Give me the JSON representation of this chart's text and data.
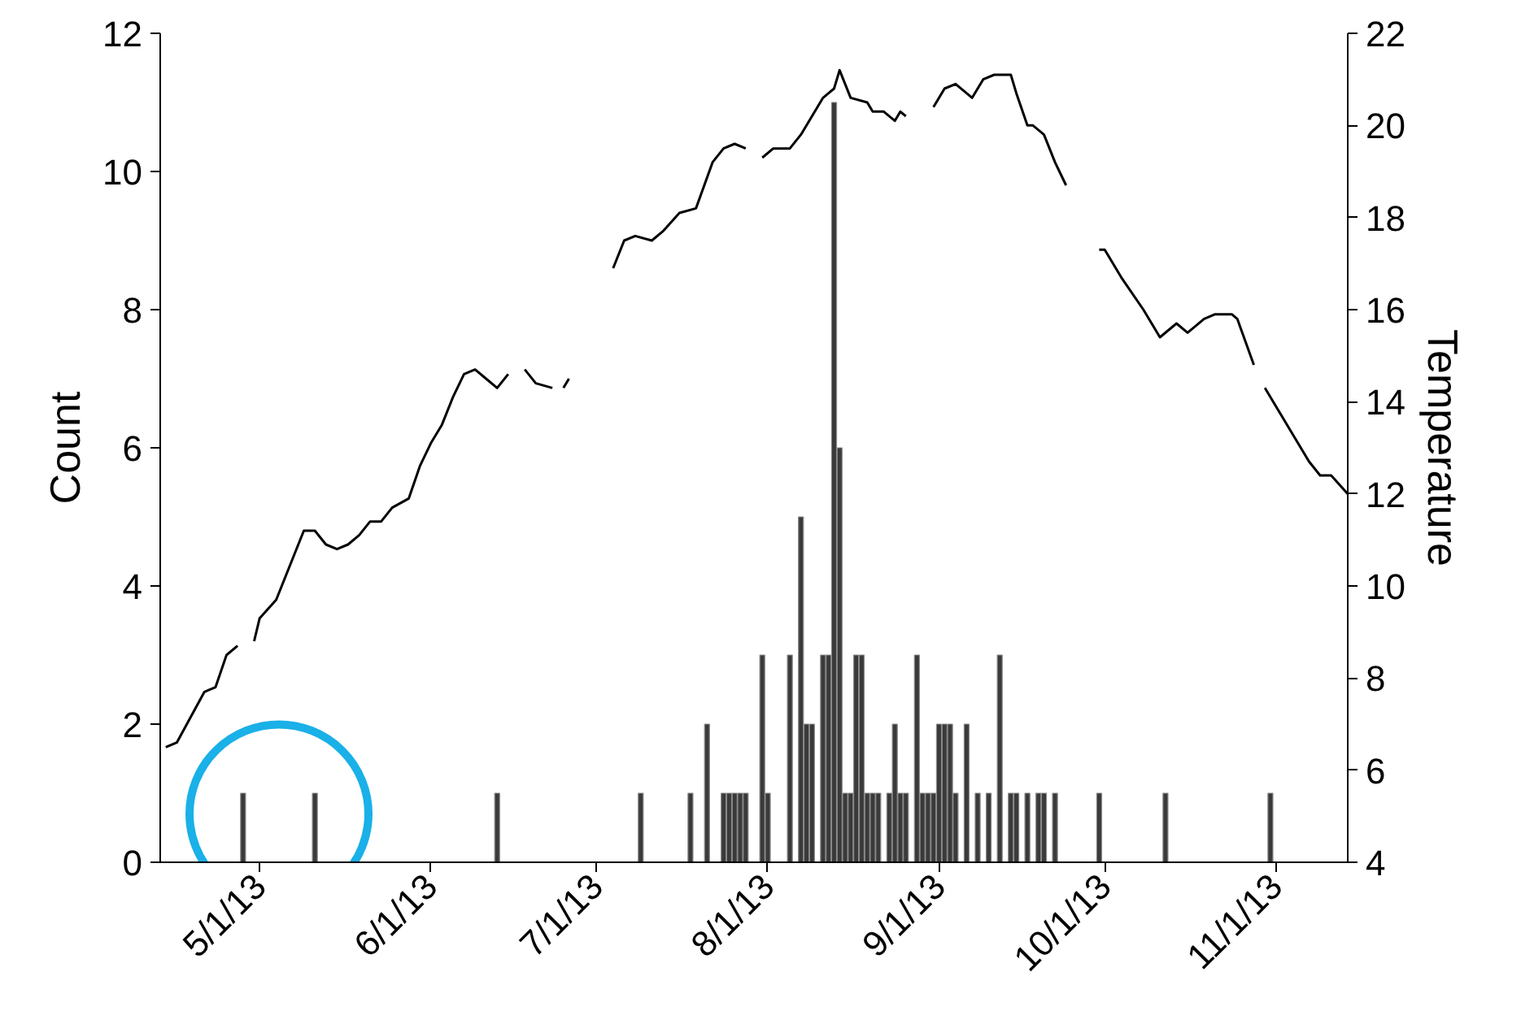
{
  "chart_data": {
    "type": "bar",
    "ylabel": "Count",
    "y2label": "Temperature",
    "xlim": [
      "2013-04-13",
      "2013-11-14"
    ],
    "xticks": [
      {
        "value": "2013-05-01",
        "label": "5/1/13"
      },
      {
        "value": "2013-06-01",
        "label": "6/1/13"
      },
      {
        "value": "2013-07-01",
        "label": "7/1/13"
      },
      {
        "value": "2013-08-01",
        "label": "8/1/13"
      },
      {
        "value": "2013-09-01",
        "label": "9/1/13"
      },
      {
        "value": "2013-10-01",
        "label": "10/1/13"
      },
      {
        "value": "2013-11-01",
        "label": "11/1/13"
      }
    ],
    "ylim": [
      0,
      12
    ],
    "yticks": [
      0,
      2,
      4,
      6,
      8,
      10,
      12
    ],
    "y2lim": [
      4,
      22
    ],
    "y2ticks": [
      4,
      6,
      8,
      10,
      12,
      14,
      16,
      18,
      20,
      22
    ],
    "grid": false,
    "series": [
      {
        "color": "#3a3a3a",
        "x": [
          "2013-04-28",
          "2013-05-11",
          "2013-06-13",
          "2013-07-09",
          "2013-07-18",
          "2013-07-21",
          "2013-07-24",
          "2013-07-25",
          "2013-07-26",
          "2013-07-27",
          "2013-07-28",
          "2013-07-31",
          "2013-08-01",
          "2013-08-05",
          "2013-08-07",
          "2013-08-08",
          "2013-08-09",
          "2013-08-11",
          "2013-08-12",
          "2013-08-13",
          "2013-08-14",
          "2013-08-15",
          "2013-08-16",
          "2013-08-17",
          "2013-08-18",
          "2013-08-19",
          "2013-08-20",
          "2013-08-21",
          "2013-08-23",
          "2013-08-24",
          "2013-08-25",
          "2013-08-26",
          "2013-08-28",
          "2013-08-29",
          "2013-08-30",
          "2013-08-31",
          "2013-09-01",
          "2013-09-02",
          "2013-09-03",
          "2013-09-04",
          "2013-09-06",
          "2013-09-08",
          "2013-09-10",
          "2013-09-12",
          "2013-09-14",
          "2013-09-15",
          "2013-09-17",
          "2013-09-19",
          "2013-09-20",
          "2013-09-22",
          "2013-09-30",
          "2013-10-12",
          "2013-10-31"
        ],
        "values": [
          1,
          1,
          1,
          1,
          1,
          2,
          1,
          1,
          1,
          1,
          1,
          3,
          1,
          3,
          5,
          2,
          2,
          3,
          3,
          11,
          6,
          1,
          1,
          3,
          3,
          1,
          1,
          1,
          1,
          2,
          1,
          1,
          3,
          1,
          1,
          1,
          2,
          2,
          2,
          1,
          2,
          1,
          1,
          3,
          1,
          1,
          1,
          1,
          1,
          1,
          1,
          1,
          1
        ]
      },
      {
        "type": "line",
        "axis": "y2",
        "color": "#000000",
        "line_style": "solid",
        "marker": "none",
        "x": [
          "2013-04-14",
          "2013-04-16",
          "2013-04-21",
          "2013-04-23",
          "2013-04-25",
          "2013-04-27",
          "2013-04-28",
          "2013-04-30",
          "2013-05-01",
          "2013-05-04",
          "2013-05-07",
          "2013-05-09",
          "2013-05-11",
          "2013-05-13",
          "2013-05-15",
          "2013-05-17",
          "2013-05-19",
          "2013-05-21",
          "2013-05-23",
          "2013-05-25",
          "2013-05-28",
          "2013-05-30",
          "2013-06-01",
          "2013-06-03",
          "2013-06-05",
          "2013-06-07",
          "2013-06-09",
          "2013-06-11",
          "2013-06-13",
          "2013-06-15",
          "2013-06-16",
          "2013-06-18",
          "2013-06-20",
          "2013-06-23",
          "2013-06-24",
          "2013-06-25",
          "2013-06-26",
          "2013-07-01",
          "2013-07-04",
          "2013-07-06",
          "2013-07-08",
          "2013-07-11",
          "2013-07-13",
          "2013-07-16",
          "2013-07-19",
          "2013-07-22",
          "2013-07-24",
          "2013-07-26",
          "2013-07-28",
          "2013-07-29",
          "2013-07-31",
          "2013-08-02",
          "2013-08-05",
          "2013-08-07",
          "2013-08-11",
          "2013-08-13",
          "2013-08-14",
          "2013-08-16",
          "2013-08-19",
          "2013-08-20",
          "2013-08-22",
          "2013-08-24",
          "2013-08-25",
          "2013-08-26",
          "2013-08-28",
          "2013-08-31",
          "2013-09-02",
          "2013-09-04",
          "2013-09-07",
          "2013-09-09",
          "2013-09-11",
          "2013-09-14",
          "2013-09-15",
          "2013-09-17",
          "2013-09-18",
          "2013-09-20",
          "2013-09-22",
          "2013-09-24",
          "2013-09-27",
          "2013-09-30",
          "2013-10-01",
          "2013-10-04",
          "2013-10-08",
          "2013-10-11",
          "2013-10-14",
          "2013-10-16",
          "2013-10-19",
          "2013-10-21",
          "2013-10-24",
          "2013-10-25",
          "2013-10-28",
          "2013-10-29",
          "2013-10-30",
          "2013-11-02",
          "2013-11-04",
          "2013-11-07",
          "2013-11-09",
          "2013-11-11",
          "2013-11-14"
        ],
        "values": [
          6.5,
          6.6,
          7.7,
          7.8,
          8.5,
          8.7,
          null,
          8.8,
          9.3,
          9.7,
          10.6,
          11.2,
          11.2,
          10.9,
          10.8,
          10.9,
          11.1,
          11.4,
          11.4,
          11.7,
          11.9,
          12.6,
          13.1,
          13.5,
          14.1,
          14.6,
          14.7,
          14.5,
          14.3,
          14.6,
          null,
          14.7,
          14.4,
          14.3,
          null,
          14.3,
          14.5,
          null,
          16.9,
          17.5,
          17.6,
          17.5,
          17.7,
          18.1,
          18.2,
          19.2,
          19.5,
          19.6,
          19.5,
          null,
          19.3,
          19.5,
          19.5,
          19.8,
          20.6,
          20.8,
          21.2,
          20.6,
          20.5,
          20.3,
          20.3,
          20.1,
          20.3,
          20.2,
          null,
          20.4,
          20.8,
          20.9,
          20.6,
          21.0,
          21.1,
          21.1,
          20.7,
          20.0,
          20.0,
          19.8,
          19.2,
          18.7,
          null,
          17.3,
          17.3,
          16.7,
          16.0,
          15.4,
          15.7,
          15.5,
          15.8,
          15.9,
          15.9,
          15.8,
          14.8,
          null,
          14.3,
          13.7,
          13.3,
          12.7,
          12.4,
          12.4,
          12.0
        ]
      }
    ]
  }
}
